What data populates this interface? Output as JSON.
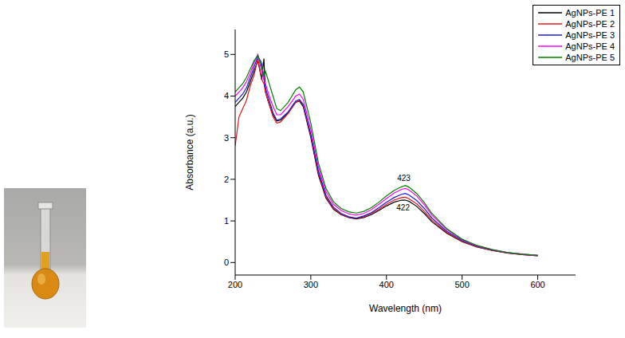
{
  "chart_data": {
    "type": "line",
    "x_label": "Wavelength (nm)",
    "y_label": "Absorbance (a.u.)",
    "x": [
      200,
      205,
      210,
      215,
      220,
      225,
      230,
      235,
      238,
      240,
      245,
      250,
      255,
      260,
      270,
      280,
      285,
      290,
      300,
      310,
      320,
      330,
      340,
      350,
      360,
      370,
      380,
      390,
      400,
      410,
      420,
      425,
      430,
      440,
      450,
      460,
      480,
      500,
      520,
      540,
      560,
      580,
      600
    ],
    "series": [
      {
        "name": "AgNPs-PE 1",
        "color": "#000000",
        "values": [
          3.75,
          3.85,
          3.95,
          4.1,
          4.35,
          4.6,
          4.85,
          4.4,
          4.9,
          4.1,
          3.8,
          3.55,
          3.4,
          3.42,
          3.6,
          3.85,
          3.88,
          3.75,
          3.0,
          2.1,
          1.55,
          1.28,
          1.15,
          1.08,
          1.05,
          1.08,
          1.15,
          1.25,
          1.36,
          1.45,
          1.5,
          1.5,
          1.47,
          1.35,
          1.18,
          0.98,
          0.7,
          0.5,
          0.37,
          0.29,
          0.23,
          0.19,
          0.16
        ]
      },
      {
        "name": "AgNPs-PE 2",
        "color": "#e8141b",
        "values": [
          2.8,
          3.5,
          3.7,
          3.9,
          4.25,
          4.5,
          4.9,
          4.4,
          4.3,
          4.1,
          3.8,
          3.5,
          3.35,
          3.38,
          3.58,
          3.85,
          3.9,
          3.78,
          3.05,
          2.15,
          1.58,
          1.3,
          1.16,
          1.09,
          1.06,
          1.1,
          1.18,
          1.28,
          1.4,
          1.5,
          1.56,
          1.57,
          1.53,
          1.41,
          1.23,
          1.02,
          0.72,
          0.51,
          0.38,
          0.29,
          0.23,
          0.19,
          0.16
        ]
      },
      {
        "name": "AgNPs-PE 3",
        "color": "#1c1cd6",
        "values": [
          3.85,
          3.95,
          4.05,
          4.2,
          4.45,
          4.7,
          4.95,
          4.8,
          4.4,
          4.2,
          3.9,
          3.6,
          3.42,
          3.45,
          3.62,
          3.88,
          3.92,
          3.8,
          3.08,
          2.2,
          1.62,
          1.33,
          1.18,
          1.1,
          1.07,
          1.12,
          1.2,
          1.32,
          1.45,
          1.56,
          1.64,
          1.66,
          1.62,
          1.49,
          1.3,
          1.07,
          0.75,
          0.53,
          0.39,
          0.3,
          0.24,
          0.2,
          0.17
        ]
      },
      {
        "name": "AgNPs-PE 4",
        "color": "#ff00ff",
        "values": [
          4.0,
          4.1,
          4.2,
          4.35,
          4.55,
          4.8,
          5.0,
          4.6,
          4.4,
          4.3,
          4.0,
          3.75,
          3.55,
          3.55,
          3.75,
          4.0,
          4.05,
          3.92,
          3.2,
          2.3,
          1.7,
          1.4,
          1.25,
          1.17,
          1.14,
          1.18,
          1.27,
          1.4,
          1.54,
          1.67,
          1.76,
          1.78,
          1.74,
          1.6,
          1.39,
          1.14,
          0.79,
          0.55,
          0.4,
          0.31,
          0.24,
          0.2,
          0.17
        ]
      },
      {
        "name": "AgNPs-PE 5",
        "color": "#008000",
        "values": [
          4.1,
          4.2,
          4.3,
          4.45,
          4.65,
          4.85,
          4.98,
          4.7,
          4.5,
          4.6,
          4.3,
          4.0,
          3.7,
          3.65,
          3.85,
          4.15,
          4.22,
          4.1,
          3.35,
          2.4,
          1.78,
          1.46,
          1.3,
          1.22,
          1.19,
          1.23,
          1.32,
          1.45,
          1.6,
          1.73,
          1.82,
          1.85,
          1.81,
          1.66,
          1.44,
          1.18,
          0.81,
          0.56,
          0.41,
          0.31,
          0.24,
          0.2,
          0.17
        ]
      }
    ],
    "xlim": [
      200,
      650
    ],
    "xticks": [
      200,
      300,
      400,
      500,
      600
    ],
    "ylim": [
      -0.3,
      5.6
    ],
    "yticks": [
      0,
      1,
      2,
      3,
      4,
      5
    ],
    "annotations": [
      {
        "text": "423",
        "x": 423,
        "y": 2.02
      },
      {
        "text": "422",
        "x": 422,
        "y": 1.32
      }
    ],
    "grid": false,
    "legend": "upper right"
  }
}
